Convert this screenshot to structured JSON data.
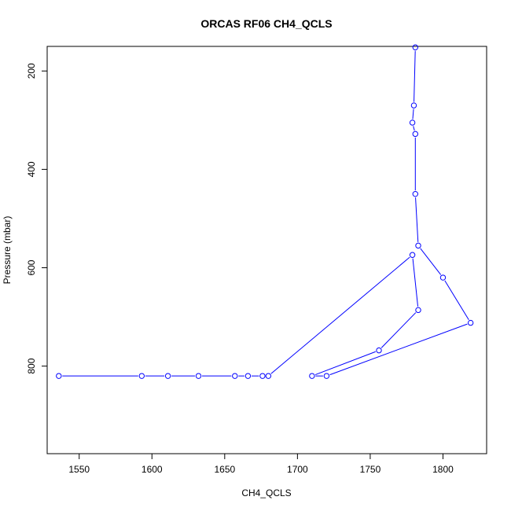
{
  "chart_data": {
    "type": "line",
    "title": "ORCAS RF06 CH4_QCLS",
    "xlabel": "CH4_QCLS",
    "ylabel": "Pressure (mbar)",
    "xlim": [
      1528,
      1830
    ],
    "ylim": [
      978,
      150
    ],
    "y_reversed": true,
    "xticks": [
      1550,
      1600,
      1650,
      1700,
      1750,
      1800
    ],
    "yticks": [
      200,
      400,
      600,
      800
    ],
    "grid": false,
    "legend": "none",
    "colors": {
      "series": "#0000ff",
      "axis": "#000000",
      "background": "#ffffff"
    },
    "series": [
      {
        "marker": "open-circle",
        "points": [
          {
            "x": 1781,
            "y": 152
          },
          {
            "x": 1780,
            "y": 270
          },
          {
            "x": 1779,
            "y": 305
          },
          {
            "x": 1781,
            "y": 328
          },
          {
            "x": 1781,
            "y": 450
          },
          {
            "x": 1783,
            "y": 555
          },
          {
            "x": 1800,
            "y": 620
          },
          {
            "x": 1819,
            "y": 712
          },
          {
            "x": 1720,
            "y": 820
          },
          {
            "x": 1710,
            "y": 820
          },
          {
            "x": 1756,
            "y": 768
          },
          {
            "x": 1783,
            "y": 686
          },
          {
            "x": 1779,
            "y": 574
          },
          {
            "x": 1680,
            "y": 820
          },
          {
            "x": 1676,
            "y": 820
          },
          {
            "x": 1666,
            "y": 820
          },
          {
            "x": 1657,
            "y": 820
          },
          {
            "x": 1632,
            "y": 820
          },
          {
            "x": 1611,
            "y": 820
          },
          {
            "x": 1593,
            "y": 820
          },
          {
            "x": 1536,
            "y": 820
          }
        ]
      }
    ]
  }
}
